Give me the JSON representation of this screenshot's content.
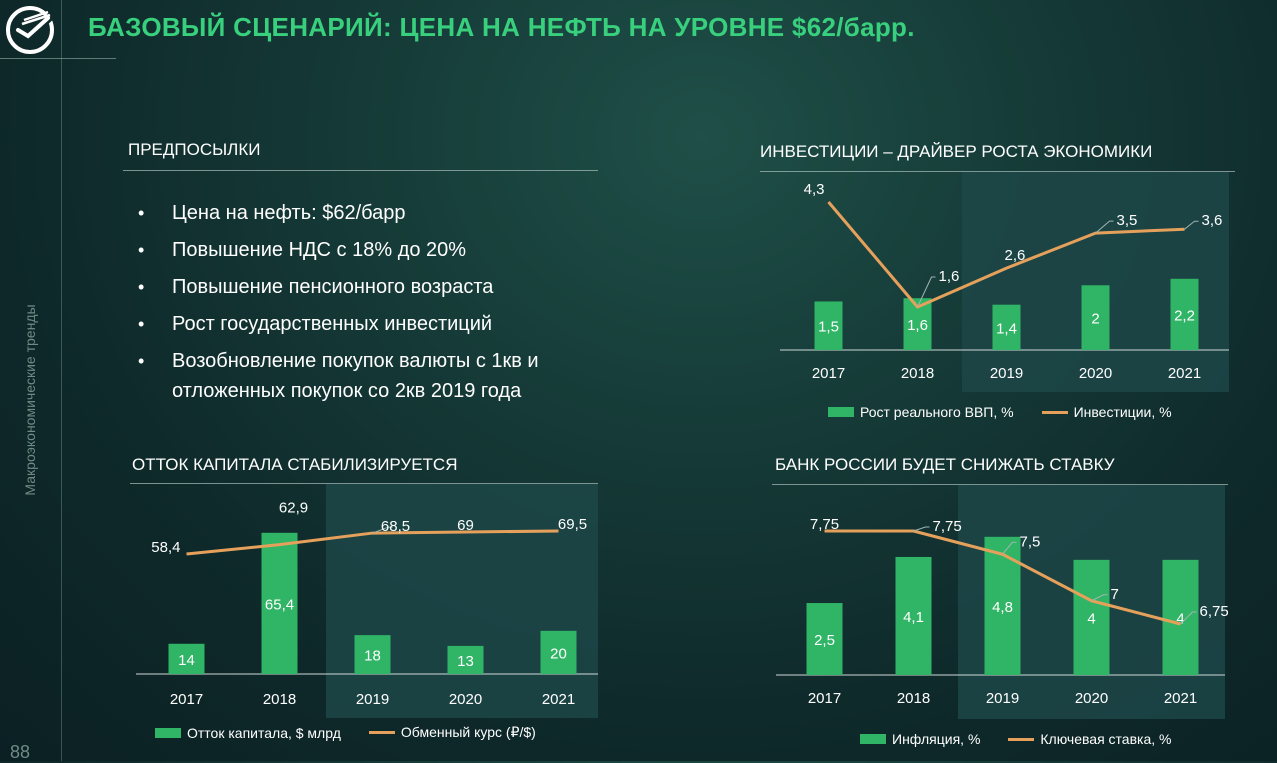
{
  "title": "БАЗОВЫЙ СЦЕНАРИЙ: ЦЕНА НА НЕФТЬ НА УРОВНЕ $62/барр.",
  "side_label": "Макроэкономические тренды",
  "page_number": "88",
  "colors": {
    "accent": "#38d07d",
    "bar": "#2fb565",
    "line": "#e5a15b",
    "forecast_shade": "#1d4648"
  },
  "icons": {
    "logo": "sberbank-logo-icon"
  },
  "premises": {
    "title": "ПРЕДПОСЫЛКИ",
    "items": [
      "Цена на нефть: $62/барр",
      "Повышение НДС с 18% до 20%",
      "Повышение пенсионного возраста",
      "Рост государственных инвестиций",
      "Возобновление покупок валюты с 1кв и отложенных покупок со 2кв 2019 года"
    ]
  },
  "chart_data": [
    {
      "id": "investments",
      "type": "bar",
      "title": "ИНВЕСТИЦИИ – ДРАЙВЕР РОСТА ЭКОНОМИКИ",
      "categories": [
        "2017",
        "2018",
        "2019",
        "2020",
        "2021"
      ],
      "shaded_from": "2019",
      "series": [
        {
          "name": "Рост реального ВВП, %",
          "type": "bar",
          "values": [
            1.5,
            1.6,
            1.4,
            2,
            2.2
          ],
          "labels": [
            "1,5",
            "1,6",
            "1,4",
            "2",
            "2,2"
          ]
        },
        {
          "name": "Инвестиции, %",
          "type": "line",
          "values": [
            4.3,
            1.6,
            2.6,
            3.5,
            3.6
          ],
          "labels": [
            "4,3",
            "1,6",
            "2,6",
            "3,5",
            "3,6"
          ]
        }
      ]
    },
    {
      "id": "capital",
      "type": "bar",
      "title": "ОТТОК КАПИТАЛА СТАБИЛИЗИРУЕТСЯ",
      "categories": [
        "2017",
        "2018",
        "2019",
        "2020",
        "2021"
      ],
      "shaded_from": "2019",
      "series": [
        {
          "name": "Отток капитала, $ млрд",
          "type": "bar",
          "values": [
            14,
            65.4,
            18,
            13,
            20
          ],
          "labels": [
            "14",
            "65,4",
            "18",
            "13",
            "20"
          ]
        },
        {
          "name": "Обменный курс (₽/$)",
          "type": "line",
          "values": [
            58.4,
            62.9,
            68.5,
            69,
            69.5
          ],
          "labels": [
            "58,4",
            "62,9",
            "68,5",
            "69",
            "69,5"
          ]
        }
      ]
    },
    {
      "id": "rate",
      "type": "bar",
      "title": "БАНК РОССИИ БУДЕТ СНИЖАТЬ СТАВКУ",
      "categories": [
        "2017",
        "2018",
        "2019",
        "2020",
        "2021"
      ],
      "shaded_from": "2019",
      "series": [
        {
          "name": "Инфляция, %",
          "type": "bar",
          "values": [
            2.5,
            4.1,
            4.8,
            4,
            4
          ],
          "labels": [
            "2,5",
            "4,1",
            "4,8",
            "4",
            "4"
          ]
        },
        {
          "name": "Ключевая ставка, %",
          "type": "line",
          "values": [
            7.75,
            7.75,
            7.5,
            7,
            6.75
          ],
          "labels": [
            "7,75",
            "7,75",
            "7,5",
            "7",
            "6,75"
          ]
        }
      ]
    }
  ]
}
